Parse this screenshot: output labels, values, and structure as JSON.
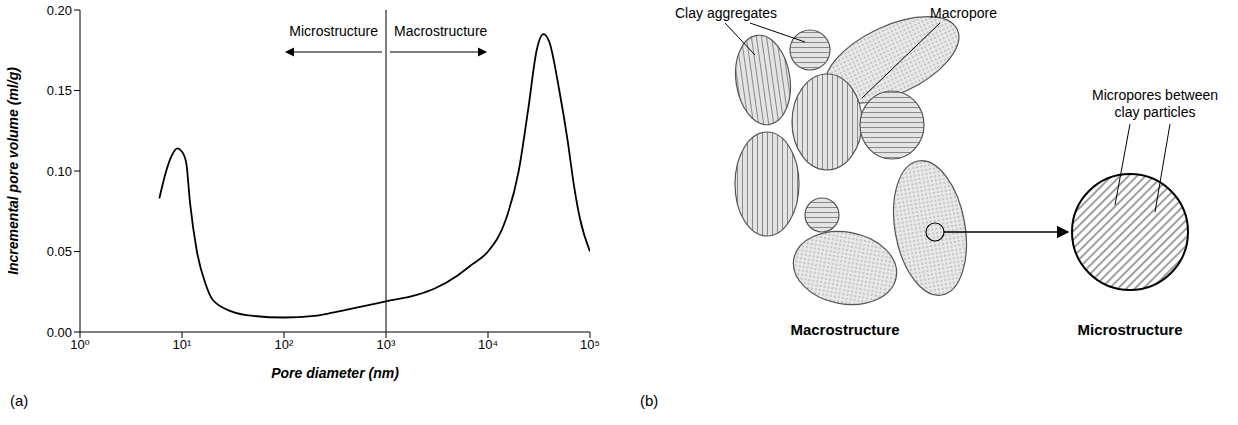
{
  "chart_data": {
    "type": "line",
    "panel": "(a)",
    "x_label": "Pore diameter (nm)",
    "y_label": "Incremental pore volume (ml/g)",
    "log": "x",
    "grid": false,
    "color": "#000000",
    "marker": "none",
    "x": [
      6,
      7,
      8,
      9,
      10,
      11,
      12,
      14,
      17,
      20,
      30,
      50,
      100,
      200,
      300,
      500,
      1000,
      2000,
      3000,
      5000,
      7000,
      10000,
      15000,
      20000,
      25000,
      30000,
      35000,
      40000,
      50000,
      60000,
      70000,
      80000,
      100000
    ],
    "values": [
      0.083,
      0.1,
      0.11,
      0.114,
      0.112,
      0.105,
      0.08,
      0.05,
      0.03,
      0.02,
      0.013,
      0.01,
      0.009,
      0.01,
      0.012,
      0.015,
      0.019,
      0.023,
      0.027,
      0.035,
      0.042,
      0.05,
      0.07,
      0.1,
      0.14,
      0.175,
      0.185,
      0.18,
      0.15,
      0.12,
      0.09,
      0.07,
      0.05
    ],
    "xlim": [
      1,
      100000
    ],
    "xticks": [
      {
        "value": 1,
        "label": "10⁰"
      },
      {
        "value": 10,
        "label": "10¹"
      },
      {
        "value": 100,
        "label": "10²"
      },
      {
        "value": 1000,
        "label": "10³"
      },
      {
        "value": 10000,
        "label": "10⁴"
      },
      {
        "value": 100000,
        "label": "10⁵"
      }
    ],
    "ylim": [
      0,
      0.2
    ],
    "yticks": [
      {
        "value": 0,
        "label": "0.00"
      },
      0.05,
      {
        "value": 0.1,
        "label": "0.10"
      },
      0.15,
      {
        "value": 0.2,
        "label": "0.20"
      }
    ],
    "divider": {
      "x": 1000,
      "left": "Microstructure",
      "right": "Macrostructure"
    }
  },
  "diagram": {
    "panel": "(b)",
    "clay_aggregates": "Clay aggregates",
    "macropore": "Macropore",
    "micropores": [
      "Micropores between",
      "clay particles"
    ],
    "macrostructure": "Macrostructure",
    "microstructure": "Microstructure"
  }
}
